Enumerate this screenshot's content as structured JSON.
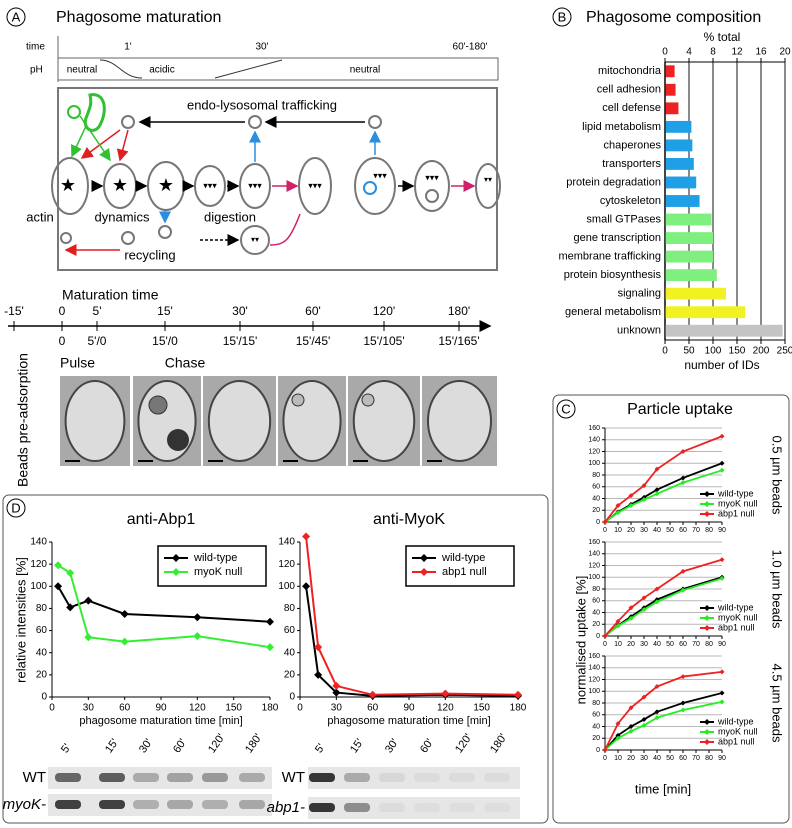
{
  "panel_labels": [
    "A",
    "B",
    "C",
    "D"
  ],
  "panel_a": {
    "title": "Phagosome maturation",
    "time_label": "time",
    "ph_label": "pH",
    "time_ticks": [
      "1'",
      "30'",
      "60'-180'"
    ],
    "ph_phases": [
      "neutral",
      "acidic",
      "neutral"
    ],
    "diagram": {
      "trafficking": "endo-lysosomal trafficking",
      "actin": "actin",
      "dynamics": "dynamics",
      "digestion": "digestion",
      "recycling": "recycling"
    },
    "timeline": {
      "title": "Maturation time",
      "ticks": [
        "-15'",
        "0",
        "5'",
        "15'",
        "30'",
        "60'",
        "120'",
        "180'"
      ],
      "sublabels": [
        "0",
        "5'/0",
        "15'/0",
        "15'/15'",
        "15'/45'",
        "15'/105'",
        "15'/165'"
      ],
      "pulse": "Pulse",
      "chase": "Chase"
    },
    "micrograph_label": "Beads pre-adsorption"
  },
  "panel_d_blots": [
    {
      "lanes": [
        "5'",
        "15'",
        "30'",
        "60'",
        "120'",
        "180'"
      ],
      "rows": [
        "WT",
        "myoK-"
      ]
    },
    {
      "lanes": [
        "5'",
        "15'",
        "30'",
        "60'",
        "120'",
        "180'"
      ],
      "rows": [
        "WT",
        "abp1-"
      ]
    }
  ],
  "chart_data": [
    {
      "type": "hbar",
      "title": "Phagosome composition",
      "xlabel": "number of IDs",
      "x2label": "% total",
      "categories": [
        "mitochondria",
        "cell adhesion",
        "cell defense",
        "lipid metabolism",
        "chaperones",
        "transporters",
        "protein degradation",
        "cytoskeleton",
        "small GTPases",
        "gene transcription",
        "membrane trafficking",
        "protein biosynthesis",
        "signaling",
        "general metabolism",
        "unknown"
      ],
      "values": [
        20,
        22,
        28,
        55,
        57,
        60,
        65,
        72,
        97,
        100,
        100,
        108,
        127,
        167,
        245
      ],
      "colors": [
        "#ee2222",
        "#ee2222",
        "#ee2222",
        "#1e9fe6",
        "#1e9fe6",
        "#1e9fe6",
        "#1e9fe6",
        "#1e9fe6",
        "#7ff07f",
        "#7ff07f",
        "#7ff07f",
        "#7ff07f",
        "#f2f222",
        "#f2f222",
        "#c4c4c4"
      ],
      "xlim": [
        0,
        250
      ],
      "xticks": [
        0,
        50,
        100,
        150,
        200,
        250
      ],
      "x2lim": [
        0,
        20
      ],
      "x2ticks": [
        0,
        4,
        8,
        12,
        16,
        20
      ],
      "grid": true
    },
    {
      "type": "line",
      "title": "Particle uptake",
      "ylabel": "normalised uptake [%]",
      "side_label": "0.5 µm beads",
      "x": [
        0,
        10,
        20,
        30,
        40,
        60,
        90
      ],
      "xlim": [
        0,
        90
      ],
      "xticks": [
        0,
        10,
        20,
        30,
        40,
        50,
        60,
        70,
        80,
        90
      ],
      "ylim": [
        0,
        160
      ],
      "yticks": [
        0,
        20,
        40,
        60,
        80,
        100,
        120,
        140,
        160
      ],
      "grid": true,
      "legend": "lower right",
      "series": [
        {
          "name": "wild-type",
          "color": "#000000",
          "values": [
            0,
            17,
            30,
            42,
            55,
            75,
            100
          ]
        },
        {
          "name": "myoK null",
          "color": "#22ee22",
          "values": [
            0,
            16,
            28,
            38,
            48,
            67,
            88
          ]
        },
        {
          "name": "abp1 null",
          "color": "#ee2222",
          "values": [
            0,
            28,
            45,
            62,
            90,
            120,
            146
          ]
        }
      ]
    },
    {
      "type": "line",
      "side_label": "1.0 µm beads",
      "x": [
        0,
        10,
        20,
        30,
        40,
        60,
        90
      ],
      "xlim": [
        0,
        90
      ],
      "xticks": [
        0,
        10,
        20,
        30,
        40,
        50,
        60,
        70,
        80,
        90
      ],
      "ylim": [
        0,
        160
      ],
      "yticks": [
        0,
        20,
        40,
        60,
        80,
        100,
        120,
        140,
        160
      ],
      "grid": true,
      "legend": "lower right",
      "series": [
        {
          "name": "wild-type",
          "color": "#000000",
          "values": [
            0,
            18,
            33,
            48,
            62,
            80,
            100
          ]
        },
        {
          "name": "myoK null",
          "color": "#22ee22",
          "values": [
            0,
            17,
            30,
            45,
            58,
            78,
            98
          ]
        },
        {
          "name": "abp1 null",
          "color": "#ee2222",
          "values": [
            0,
            25,
            48,
            65,
            80,
            110,
            130
          ]
        }
      ]
    },
    {
      "type": "line",
      "side_label": "4.5 µm beads",
      "xlabel": "time [min]",
      "x": [
        0,
        10,
        20,
        30,
        40,
        60,
        90
      ],
      "xlim": [
        0,
        90
      ],
      "xticks": [
        0,
        10,
        20,
        30,
        40,
        50,
        60,
        70,
        80,
        90
      ],
      "ylim": [
        0,
        160
      ],
      "yticks": [
        0,
        20,
        40,
        60,
        80,
        100,
        120,
        140,
        160
      ],
      "grid": true,
      "legend": "lower right",
      "series": [
        {
          "name": "wild-type",
          "color": "#000000",
          "values": [
            0,
            25,
            40,
            52,
            65,
            80,
            97
          ]
        },
        {
          "name": "myoK null",
          "color": "#22ee22",
          "values": [
            0,
            20,
            32,
            42,
            55,
            68,
            82
          ]
        },
        {
          "name": "abp1 null",
          "color": "#ee2222",
          "values": [
            0,
            45,
            72,
            90,
            108,
            125,
            133
          ]
        }
      ]
    },
    {
      "type": "line",
      "title": "anti-Abp1",
      "ylabel": "relative intensities [%]",
      "xlabel": "phagosome maturation time [min]",
      "x": [
        5,
        15,
        30,
        60,
        120,
        180
      ],
      "xlim": [
        0,
        180
      ],
      "xticks": [
        0,
        30,
        60,
        90,
        120,
        150,
        180
      ],
      "ylim": [
        0,
        140
      ],
      "yticks": [
        0,
        20,
        40,
        60,
        80,
        100,
        120,
        140
      ],
      "grid": false,
      "legend": "upper right",
      "series": [
        {
          "name": "wild-type",
          "color": "#000000",
          "values": [
            100,
            81,
            87,
            75,
            72,
            68
          ]
        },
        {
          "name": "myoK null",
          "color": "#33ee33",
          "values": [
            119,
            112,
            54,
            50,
            55,
            45
          ]
        }
      ]
    },
    {
      "type": "line",
      "title": "anti-MyoK",
      "xlabel": "phagosome maturation time [min]",
      "x": [
        5,
        15,
        30,
        60,
        120,
        180
      ],
      "xlim": [
        0,
        180
      ],
      "xticks": [
        0,
        30,
        60,
        90,
        120,
        150,
        180
      ],
      "ylim": [
        0,
        140
      ],
      "yticks": [
        0,
        20,
        40,
        60,
        80,
        100,
        120,
        140
      ],
      "grid": false,
      "legend": "upper right",
      "series": [
        {
          "name": "wild-type",
          "color": "#000000",
          "values": [
            100,
            20,
            4,
            1,
            2,
            1
          ]
        },
        {
          "name": "abp1 null",
          "color": "#ee2222",
          "values": [
            145,
            45,
            10,
            2,
            3,
            2
          ]
        }
      ]
    }
  ]
}
